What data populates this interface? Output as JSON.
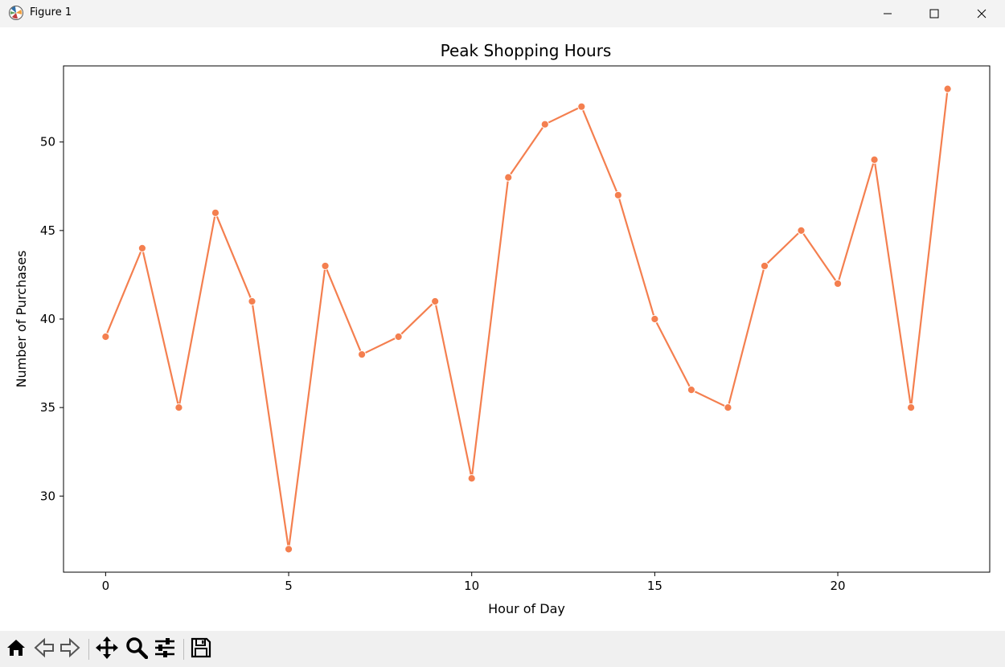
{
  "window": {
    "title": "Figure 1"
  },
  "toolbar": {
    "buttons": [
      {
        "name": "home-icon"
      },
      {
        "name": "back-icon"
      },
      {
        "name": "forward-icon"
      },
      {
        "name": "pan-icon"
      },
      {
        "name": "zoom-icon"
      },
      {
        "name": "configure-subplots-icon"
      },
      {
        "name": "save-icon"
      }
    ]
  },
  "chart_data": {
    "type": "line",
    "title": "Peak Shopping Hours",
    "xlabel": "Hour of Day",
    "ylabel": "Number of Purchases",
    "x": [
      0,
      1,
      2,
      3,
      4,
      5,
      6,
      7,
      8,
      9,
      10,
      11,
      12,
      13,
      14,
      15,
      16,
      17,
      18,
      19,
      20,
      21,
      22,
      23
    ],
    "series": [
      {
        "values": [
          39,
          44,
          35,
          46,
          41,
          27,
          43,
          38,
          39,
          41,
          31,
          48,
          51,
          52,
          47,
          40,
          36,
          35,
          43,
          45,
          42,
          49,
          35,
          53
        ]
      }
    ],
    "xlim": [
      -1.15,
      24.15
    ],
    "ylim": [
      25.7,
      54.3
    ],
    "xticks": [
      0,
      5,
      10,
      15,
      20
    ],
    "yticks": [
      30,
      35,
      40,
      45,
      50
    ],
    "grid": false,
    "color": "#f47f4f"
  }
}
